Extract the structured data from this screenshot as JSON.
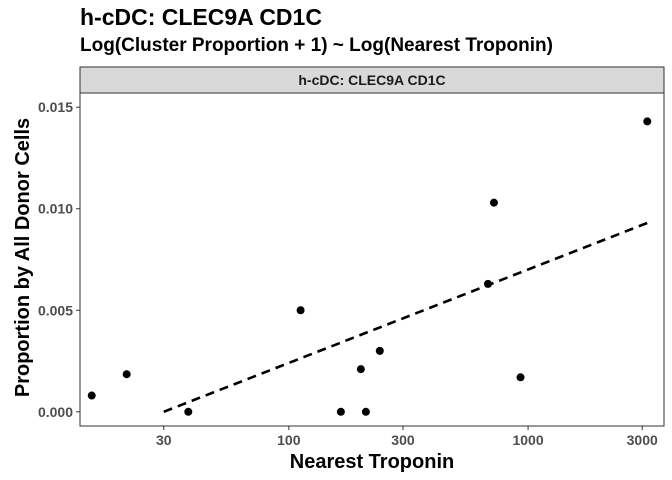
{
  "chart_data": {
    "type": "scatter",
    "title": "h-cDC: CLEC9A CD1C",
    "subtitle": "Log(Cluster Proportion + 1) ~ Log(Nearest Troponin)",
    "facet_label": "h-cDC: CLEC9A CD1C",
    "xlabel": "Nearest Troponin",
    "ylabel": "Proportion by All Donor Cells",
    "x_scale": "log10",
    "xlim": [
      13.4,
      3700
    ],
    "ylim": [
      -0.0007,
      0.0157
    ],
    "x_ticks": [
      30,
      100,
      300,
      1000,
      3000
    ],
    "x_tick_labels": [
      "30",
      "100",
      "300",
      "1000",
      "3000"
    ],
    "y_ticks": [
      0.0,
      0.005,
      0.01,
      0.015
    ],
    "y_tick_labels": [
      "0.000",
      "0.005",
      "0.010",
      "0.015"
    ],
    "grid": false,
    "points": [
      {
        "x": 15,
        "y": 0.0008
      },
      {
        "x": 21,
        "y": 0.00185
      },
      {
        "x": 38,
        "y": 0.0
      },
      {
        "x": 112,
        "y": 0.005
      },
      {
        "x": 165,
        "y": 0.0
      },
      {
        "x": 200,
        "y": 0.0021
      },
      {
        "x": 210,
        "y": 0.0
      },
      {
        "x": 240,
        "y": 0.003
      },
      {
        "x": 680,
        "y": 0.0063
      },
      {
        "x": 720,
        "y": 0.0103
      },
      {
        "x": 930,
        "y": 0.0017
      },
      {
        "x": 3150,
        "y": 0.0143
      }
    ],
    "trend_line": {
      "style": "dashed",
      "x": [
        30,
        3150
      ],
      "y": [
        0.0,
        0.0093
      ]
    },
    "colors": {
      "points": "#000000",
      "line": "#000000",
      "strip_bg": "#d9d9d9",
      "panel_border": "#333333"
    }
  }
}
